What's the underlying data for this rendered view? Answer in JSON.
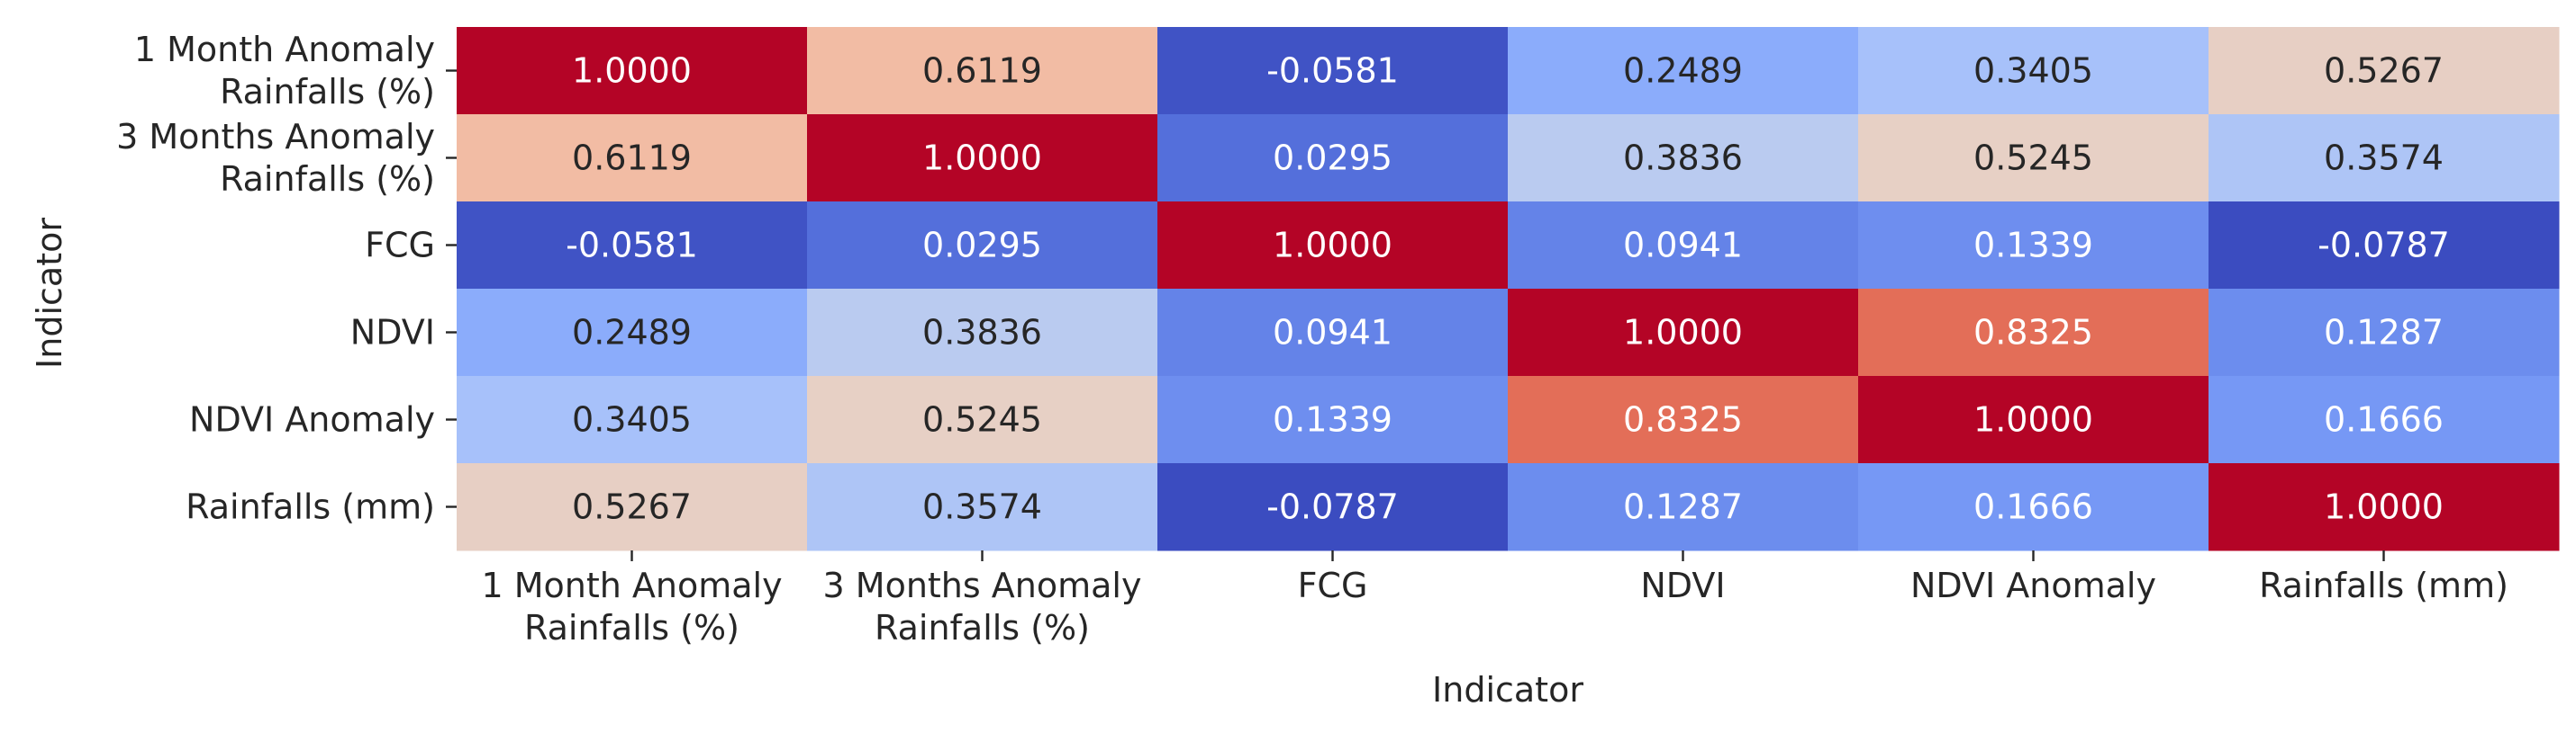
{
  "chart_data": {
    "type": "heatmap",
    "xlabel": "Indicator",
    "ylabel": "Indicator",
    "x_categories": [
      "1 Month Anomaly\nRainfalls (%)",
      "3 Months Anomaly\nRainfalls (%)",
      "FCG",
      "NDVI",
      "NDVI Anomaly",
      "Rainfalls (mm)"
    ],
    "y_categories": [
      "1 Month Anomaly\nRainfalls (%)",
      "3 Months Anomaly\nRainfalls (%)",
      "FCG",
      "NDVI",
      "NDVI Anomaly",
      "Rainfalls (mm)"
    ],
    "values": [
      [
        1.0,
        0.6119,
        -0.0581,
        0.2489,
        0.3405,
        0.5267
      ],
      [
        0.6119,
        1.0,
        0.0295,
        0.3836,
        0.5245,
        0.3574
      ],
      [
        -0.0581,
        0.0295,
        1.0,
        0.0941,
        0.1339,
        -0.0787
      ],
      [
        0.2489,
        0.3836,
        0.0941,
        1.0,
        0.8325,
        0.1287
      ],
      [
        0.3405,
        0.5245,
        0.1339,
        0.8325,
        1.0,
        0.1666
      ],
      [
        0.5267,
        0.3574,
        -0.0787,
        0.1287,
        0.1666,
        1.0
      ]
    ],
    "cell_labels": [
      [
        "1.0000",
        "0.6119",
        "-0.0581",
        "0.2489",
        "0.3405",
        "0.5267"
      ],
      [
        "0.6119",
        "1.0000",
        "0.0295",
        "0.3836",
        "0.5245",
        "0.3574"
      ],
      [
        "-0.0581",
        "0.0295",
        "1.0000",
        "0.0941",
        "0.1339",
        "-0.0787"
      ],
      [
        "0.2489",
        "0.3836",
        "0.0941",
        "1.0000",
        "0.8325",
        "0.1287"
      ],
      [
        "0.3405",
        "0.5245",
        "0.1339",
        "0.8325",
        "1.0000",
        "0.1666"
      ],
      [
        "0.5267",
        "0.3574",
        "-0.0787",
        "0.1287",
        "0.1666",
        "1.0000"
      ]
    ],
    "colormap": "coolwarm",
    "colorbar": false,
    "grid": false
  }
}
